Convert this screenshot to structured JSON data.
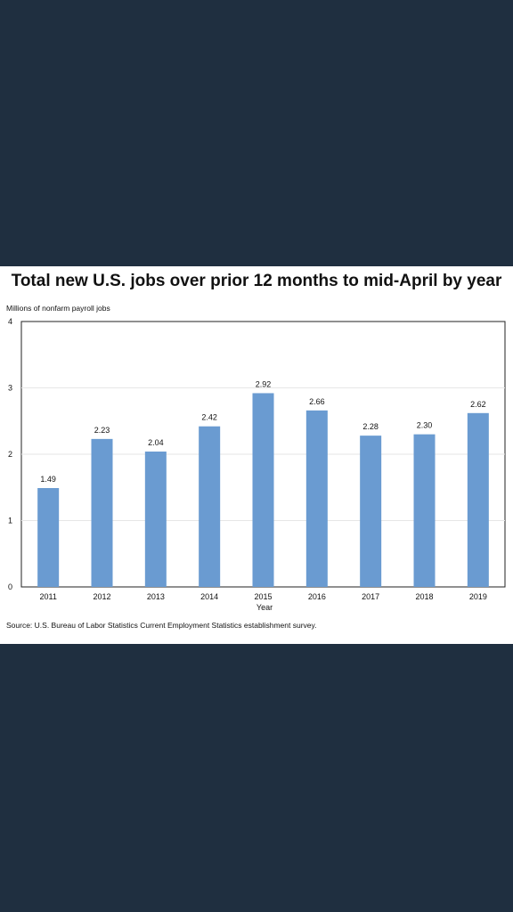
{
  "chart_data": {
    "type": "bar",
    "title": "Total new U.S. jobs over prior 12 months to mid-April by year",
    "ylabel": "Millions of nonfarm payroll jobs",
    "xlabel": "Year",
    "categories": [
      "2011",
      "2012",
      "2013",
      "2014",
      "2015",
      "2016",
      "2017",
      "2018",
      "2019"
    ],
    "values": [
      1.49,
      2.23,
      2.04,
      2.42,
      2.92,
      2.66,
      2.28,
      2.3,
      2.62
    ],
    "data_labels": [
      "1.49",
      "2.23",
      "2.04",
      "2.42",
      "2.92",
      "2.66",
      "2.28",
      "2.30",
      "2.62"
    ],
    "ylim": [
      0,
      4
    ],
    "yticks": [
      "0",
      "1",
      "2",
      "3",
      "4"
    ],
    "grid": true,
    "bar_color": "#6a9bd1",
    "source": "Source: U.S. Bureau of Labor Statistics Current Employment Statistics establishment survey."
  }
}
